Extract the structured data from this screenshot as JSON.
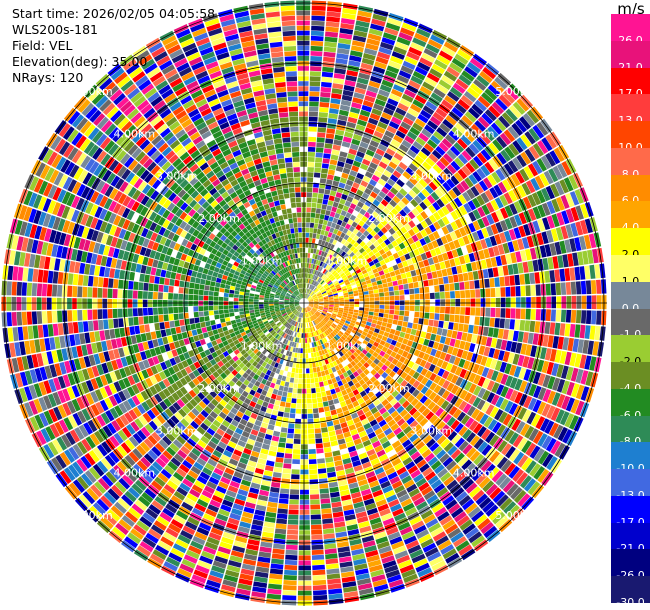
{
  "info": {
    "start_time": "Start time: 2026/02/05 04:05:58",
    "instrument": "WLS200s-181",
    "field": "Field: VEL",
    "elevation": "Elevation(deg): 35.00",
    "nrays": "NRays: 120"
  },
  "colorbar": {
    "unit": "m/s",
    "levels": [
      {
        "label": "26.0",
        "color": "#ff1493"
      },
      {
        "label": "21.0",
        "color": "#e8127a"
      },
      {
        "label": "17.0",
        "color": "#ff0000"
      },
      {
        "label": "13.0",
        "color": "#ff3c3c"
      },
      {
        "label": "10.0",
        "color": "#ff4500"
      },
      {
        "label": "8.0",
        "color": "#ff6a4a"
      },
      {
        "label": "6.0",
        "color": "#ff8c00"
      },
      {
        "label": "4.0",
        "color": "#ffa500"
      },
      {
        "label": "2.0",
        "color": "#ffff00"
      },
      {
        "label": "1.0",
        "color": "#ffff66"
      },
      {
        "label": "0.0",
        "color": "#778899"
      },
      {
        "label": "-1.0",
        "color": "#696969"
      },
      {
        "label": "-2.0",
        "color": "#9acd32"
      },
      {
        "label": "-4.0",
        "color": "#6b8e23"
      },
      {
        "label": "-6.0",
        "color": "#228b22"
      },
      {
        "label": "-8.0",
        "color": "#2e8b57"
      },
      {
        "label": "-10.0",
        "color": "#1e7fd0"
      },
      {
        "label": "-13.0",
        "color": "#4169e1"
      },
      {
        "label": "-17.0",
        "color": "#0000ff"
      },
      {
        "label": "-21.0",
        "color": "#0000cd"
      },
      {
        "label": "-26.0",
        "color": "#000080"
      },
      {
        "label": "-30.0",
        "color": "#191970"
      }
    ]
  },
  "range_rings": [
    "1.00km",
    "2.00km",
    "3.00km",
    "4.00km",
    "5.00km"
  ]
}
